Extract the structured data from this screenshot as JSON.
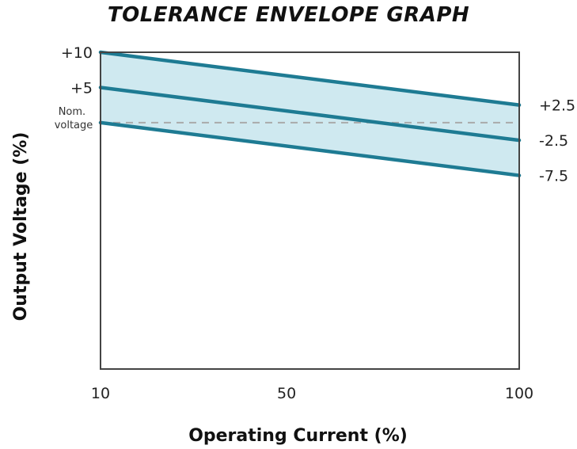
{
  "chart_data": {
    "type": "area",
    "title": "TOLERANCE ENVELOPE GRAPH",
    "xlabel": "Operating Current (%)",
    "ylabel": "Output Voltage (%)",
    "x_ticks": [
      10,
      50,
      100
    ],
    "xlim": [
      10,
      100
    ],
    "ylim": [
      -35,
      10
    ],
    "y_ticks_left": [
      {
        "value": 10,
        "label": "+10"
      },
      {
        "value": 5,
        "label": "+5"
      }
    ],
    "nominal_label": [
      "Nom.",
      "voltage"
    ],
    "nominal_value": 0,
    "series": [
      {
        "values": [
          {
            "x": 10,
            "y": 10
          },
          {
            "x": 100,
            "y": 2.5
          }
        ],
        "end_label": "+2.5"
      },
      {
        "values": [
          {
            "x": 10,
            "y": 5
          },
          {
            "x": 100,
            "y": -2.5
          }
        ],
        "end_label": "-2.5"
      },
      {
        "values": [
          {
            "x": 10,
            "y": 0
          },
          {
            "x": 100,
            "y": -7.5
          }
        ],
        "end_label": "-7.5"
      }
    ],
    "envelope": {
      "upper_series": 0,
      "lower_series": 2
    },
    "grid": false,
    "colors": {
      "line": "#1e7b93",
      "fill": "#cfe9f0",
      "axis": "#444444",
      "nominal_dash": "#aaaaaa"
    }
  }
}
